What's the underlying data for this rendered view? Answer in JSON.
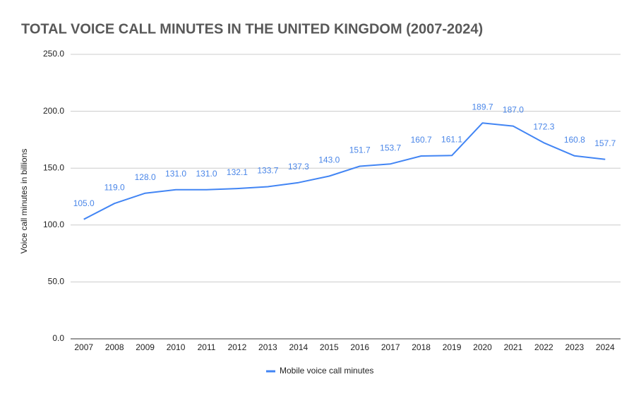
{
  "chart_data": {
    "type": "line",
    "title": "TOTAL VOICE CALL MINUTES IN THE UNITED KINGDOM (2007-2024)",
    "y_label": "Voice call minutes in billions",
    "categories": [
      "2007",
      "2008",
      "2009",
      "2010",
      "2011",
      "2012",
      "2013",
      "2014",
      "2015",
      "2016",
      "2017",
      "2018",
      "2019",
      "2020",
      "2021",
      "2022",
      "2023",
      "2024"
    ],
    "series": [
      {
        "name": "Mobile voice call minutes",
        "color": "#4285f4",
        "values": [
          105.0,
          119.0,
          128.0,
          131.0,
          131.0,
          132.1,
          133.7,
          137.3,
          143.0,
          151.7,
          153.7,
          160.7,
          161.1,
          189.7,
          187.0,
          172.3,
          160.8,
          157.7
        ],
        "value_labels": [
          "105.0",
          "119.0",
          "128.0",
          "131.0",
          "131.0",
          "132.1",
          "133.7",
          "137.3",
          "143.0",
          "151.7",
          "153.7",
          "160.7",
          "161.1",
          "189.7",
          "187.0",
          "172.3",
          "160.8",
          "157.7"
        ]
      }
    ],
    "ylim": [
      0,
      250
    ],
    "yticks": [
      {
        "value": 0,
        "label": "0.0"
      },
      {
        "value": 50,
        "label": "50.0"
      },
      {
        "value": 100,
        "label": "100.0"
      },
      {
        "value": 150,
        "label": "150.0"
      },
      {
        "value": 200,
        "label": "200.0"
      },
      {
        "value": 250,
        "label": "250.0"
      }
    ],
    "grid": true,
    "legend": "bottom"
  }
}
